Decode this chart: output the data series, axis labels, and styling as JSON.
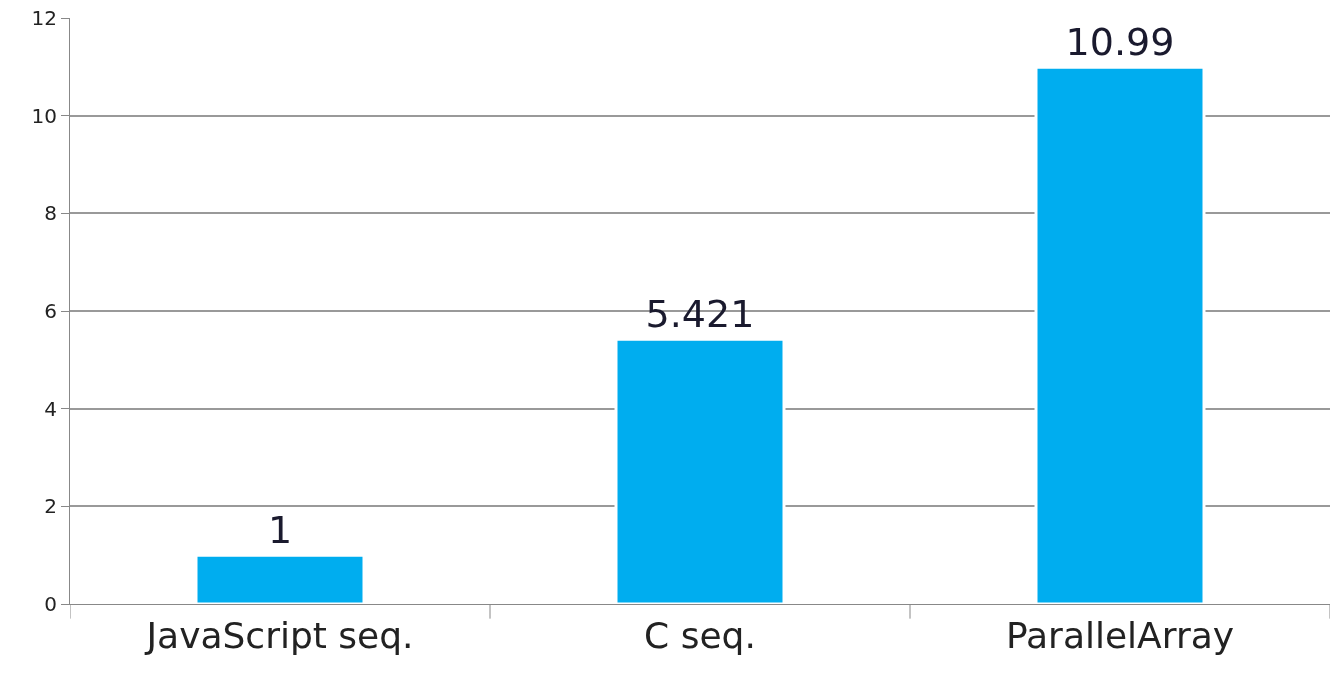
{
  "chart_data": {
    "type": "bar",
    "categories": [
      "JavaScript seq.",
      "C seq.",
      "ParallelArray"
    ],
    "values": [
      1,
      5.421,
      10.99
    ],
    "color": "#00adef",
    "ylim": [
      0,
      12
    ],
    "yticks": [
      0,
      2,
      4,
      6,
      8,
      10,
      12
    ],
    "grid": "y",
    "data_labels": true
  }
}
